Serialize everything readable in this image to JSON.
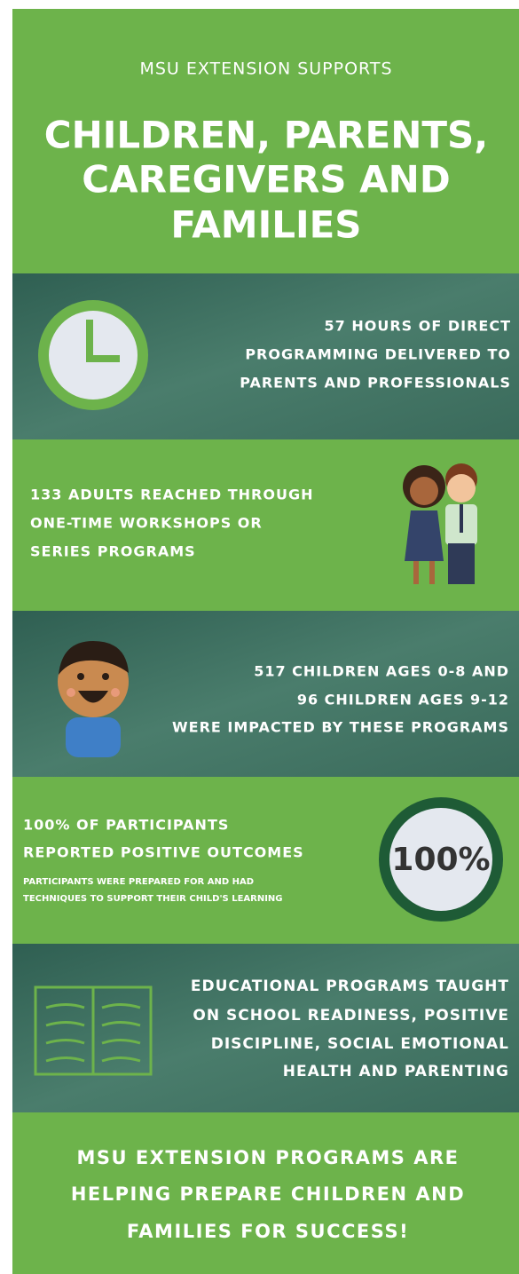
{
  "header": {
    "kicker": "MSU EXTENSION SUPPORTS",
    "title": [
      "CHILDREN, PARENTS,",
      "CAREGIVERS AND",
      "FAMILIES"
    ]
  },
  "sections": [
    {
      "lines": [
        "57 HOURS OF DIRECT",
        "PROGRAMMING DELIVERED TO",
        "PARENTS AND PROFESSIONALS"
      ]
    },
    {
      "lines": [
        "133 ADULTS REACHED THROUGH",
        "ONE-TIME WORKSHOPS OR",
        "SERIES PROGRAMS"
      ]
    },
    {
      "lines": [
        "517 CHILDREN AGES 0-8 AND",
        "96 CHILDREN AGES 9-12",
        "WERE IMPACTED BY THESE PROGRAMS"
      ]
    },
    {
      "lines": [
        "100% OF PARTICIPANTS",
        "REPORTED POSITIVE OUTCOMES"
      ],
      "small": [
        "PARTICIPANTS WERE PREPARED FOR AND HAD",
        "TECHNIQUES TO SUPPORT THEIR CHILD'S LEARNING"
      ],
      "badge": "100%"
    },
    {
      "lines": [
        "EDUCATIONAL PROGRAMS TAUGHT",
        "ON SCHOOL READINESS, POSITIVE",
        "DISCIPLINE, SOCIAL EMOTIONAL",
        "HEALTH AND PARENTING"
      ]
    }
  ],
  "footer": {
    "lines": [
      "MSU EXTENSION PROGRAMS ARE",
      "HELPING PREPARE CHILDREN AND",
      "FAMILIES FOR SUCCESS!"
    ]
  }
}
